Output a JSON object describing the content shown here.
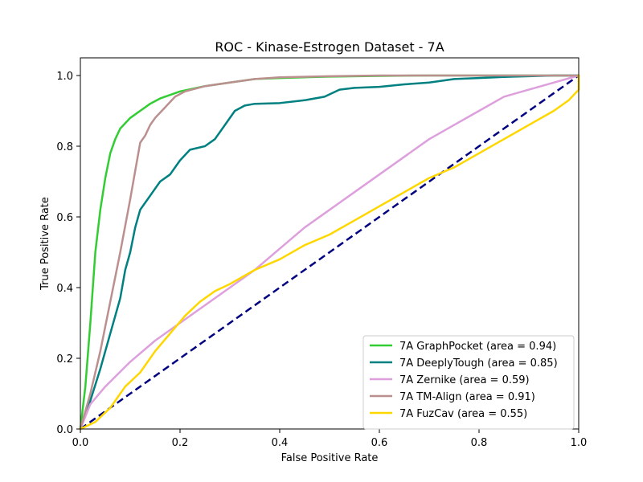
{
  "chart_data": {
    "type": "line",
    "title": "ROC - Kinase-Estrogen Dataset - 7A",
    "xlabel": "False Positive Rate",
    "ylabel": "True Positive Rate",
    "xlim": [
      0.0,
      1.0
    ],
    "ylim": [
      0.0,
      1.05
    ],
    "xticks": [
      0.0,
      0.2,
      0.4,
      0.6,
      0.8,
      1.0
    ],
    "xtick_labels": [
      "0.0",
      "0.2",
      "0.4",
      "0.6",
      "0.8",
      "1.0"
    ],
    "yticks": [
      0.0,
      0.2,
      0.4,
      0.6,
      0.8,
      1.0
    ],
    "ytick_labels": [
      "0.0",
      "0.2",
      "0.4",
      "0.6",
      "0.8",
      "1.0"
    ],
    "grid": false,
    "legend_position": "lower-right",
    "reference_line": {
      "color": "#000080",
      "style": "dashed",
      "points": [
        [
          0,
          0
        ],
        [
          1,
          1
        ]
      ]
    },
    "series": [
      {
        "name": "7A GraphPocket (area = 0.94)",
        "color": "#32cd32",
        "points": [
          [
            0,
            0
          ],
          [
            0.01,
            0.12
          ],
          [
            0.02,
            0.3
          ],
          [
            0.03,
            0.5
          ],
          [
            0.04,
            0.62
          ],
          [
            0.05,
            0.71
          ],
          [
            0.06,
            0.78
          ],
          [
            0.07,
            0.82
          ],
          [
            0.08,
            0.85
          ],
          [
            0.09,
            0.865
          ],
          [
            0.1,
            0.88
          ],
          [
            0.12,
            0.9
          ],
          [
            0.14,
            0.92
          ],
          [
            0.16,
            0.935
          ],
          [
            0.18,
            0.945
          ],
          [
            0.2,
            0.955
          ],
          [
            0.25,
            0.97
          ],
          [
            0.3,
            0.98
          ],
          [
            0.35,
            0.99
          ],
          [
            0.4,
            0.993
          ],
          [
            0.5,
            0.997
          ],
          [
            0.6,
            0.999
          ],
          [
            0.7,
            1.0
          ],
          [
            1.0,
            1.0
          ]
        ]
      },
      {
        "name": "7A DeeplyTough (area = 0.85)",
        "color": "#008080",
        "points": [
          [
            0,
            0
          ],
          [
            0.02,
            0.08
          ],
          [
            0.04,
            0.17
          ],
          [
            0.06,
            0.27
          ],
          [
            0.07,
            0.32
          ],
          [
            0.08,
            0.37
          ],
          [
            0.09,
            0.45
          ],
          [
            0.1,
            0.5
          ],
          [
            0.11,
            0.57
          ],
          [
            0.12,
            0.62
          ],
          [
            0.13,
            0.64
          ],
          [
            0.14,
            0.66
          ],
          [
            0.15,
            0.68
          ],
          [
            0.16,
            0.7
          ],
          [
            0.18,
            0.72
          ],
          [
            0.19,
            0.74
          ],
          [
            0.2,
            0.76
          ],
          [
            0.22,
            0.79
          ],
          [
            0.25,
            0.8
          ],
          [
            0.27,
            0.82
          ],
          [
            0.29,
            0.86
          ],
          [
            0.31,
            0.9
          ],
          [
            0.33,
            0.915
          ],
          [
            0.35,
            0.92
          ],
          [
            0.4,
            0.922
          ],
          [
            0.45,
            0.93
          ],
          [
            0.49,
            0.94
          ],
          [
            0.52,
            0.96
          ],
          [
            0.55,
            0.965
          ],
          [
            0.6,
            0.968
          ],
          [
            0.65,
            0.975
          ],
          [
            0.7,
            0.98
          ],
          [
            0.75,
            0.99
          ],
          [
            0.8,
            0.993
          ],
          [
            0.85,
            0.996
          ],
          [
            0.9,
            0.998
          ],
          [
            0.95,
            1.0
          ],
          [
            1.0,
            1.0
          ]
        ]
      },
      {
        "name": "7A Zernike (area = 0.59)",
        "color": "#dda0dd",
        "points": [
          [
            0,
            0
          ],
          [
            0.02,
            0.07
          ],
          [
            0.05,
            0.12
          ],
          [
            0.1,
            0.19
          ],
          [
            0.15,
            0.25
          ],
          [
            0.2,
            0.3
          ],
          [
            0.25,
            0.35
          ],
          [
            0.3,
            0.4
          ],
          [
            0.35,
            0.45
          ],
          [
            0.4,
            0.51
          ],
          [
            0.45,
            0.57
          ],
          [
            0.5,
            0.62
          ],
          [
            0.55,
            0.67
          ],
          [
            0.6,
            0.72
          ],
          [
            0.65,
            0.77
          ],
          [
            0.7,
            0.82
          ],
          [
            0.75,
            0.86
          ],
          [
            0.8,
            0.9
          ],
          [
            0.85,
            0.94
          ],
          [
            0.9,
            0.96
          ],
          [
            0.95,
            0.98
          ],
          [
            1.0,
            1.0
          ]
        ]
      },
      {
        "name": "7A TM-Align (area = 0.91)",
        "color": "#bc8f8f",
        "points": [
          [
            0,
            0
          ],
          [
            0.02,
            0.1
          ],
          [
            0.04,
            0.22
          ],
          [
            0.06,
            0.36
          ],
          [
            0.08,
            0.5
          ],
          [
            0.1,
            0.65
          ],
          [
            0.12,
            0.81
          ],
          [
            0.13,
            0.83
          ],
          [
            0.14,
            0.86
          ],
          [
            0.15,
            0.88
          ],
          [
            0.17,
            0.91
          ],
          [
            0.19,
            0.94
          ],
          [
            0.21,
            0.955
          ],
          [
            0.25,
            0.97
          ],
          [
            0.3,
            0.98
          ],
          [
            0.35,
            0.99
          ],
          [
            0.4,
            0.995
          ],
          [
            0.5,
            0.998
          ],
          [
            0.6,
            1.0
          ],
          [
            1.0,
            1.0
          ]
        ]
      },
      {
        "name": "7A FuzCav (area = 0.55)",
        "color": "#ffd700",
        "points": [
          [
            0,
            0
          ],
          [
            0.03,
            0.02
          ],
          [
            0.06,
            0.06
          ],
          [
            0.09,
            0.12
          ],
          [
            0.12,
            0.16
          ],
          [
            0.15,
            0.22
          ],
          [
            0.18,
            0.27
          ],
          [
            0.21,
            0.32
          ],
          [
            0.24,
            0.36
          ],
          [
            0.27,
            0.39
          ],
          [
            0.3,
            0.41
          ],
          [
            0.35,
            0.45
          ],
          [
            0.4,
            0.48
          ],
          [
            0.45,
            0.52
          ],
          [
            0.5,
            0.55
          ],
          [
            0.55,
            0.59
          ],
          [
            0.6,
            0.63
          ],
          [
            0.65,
            0.67
          ],
          [
            0.7,
            0.71
          ],
          [
            0.75,
            0.74
          ],
          [
            0.8,
            0.78
          ],
          [
            0.85,
            0.82
          ],
          [
            0.9,
            0.86
          ],
          [
            0.95,
            0.9
          ],
          [
            0.98,
            0.93
          ],
          [
            1.0,
            0.96
          ],
          [
            1.0,
            1.0
          ]
        ]
      }
    ]
  }
}
